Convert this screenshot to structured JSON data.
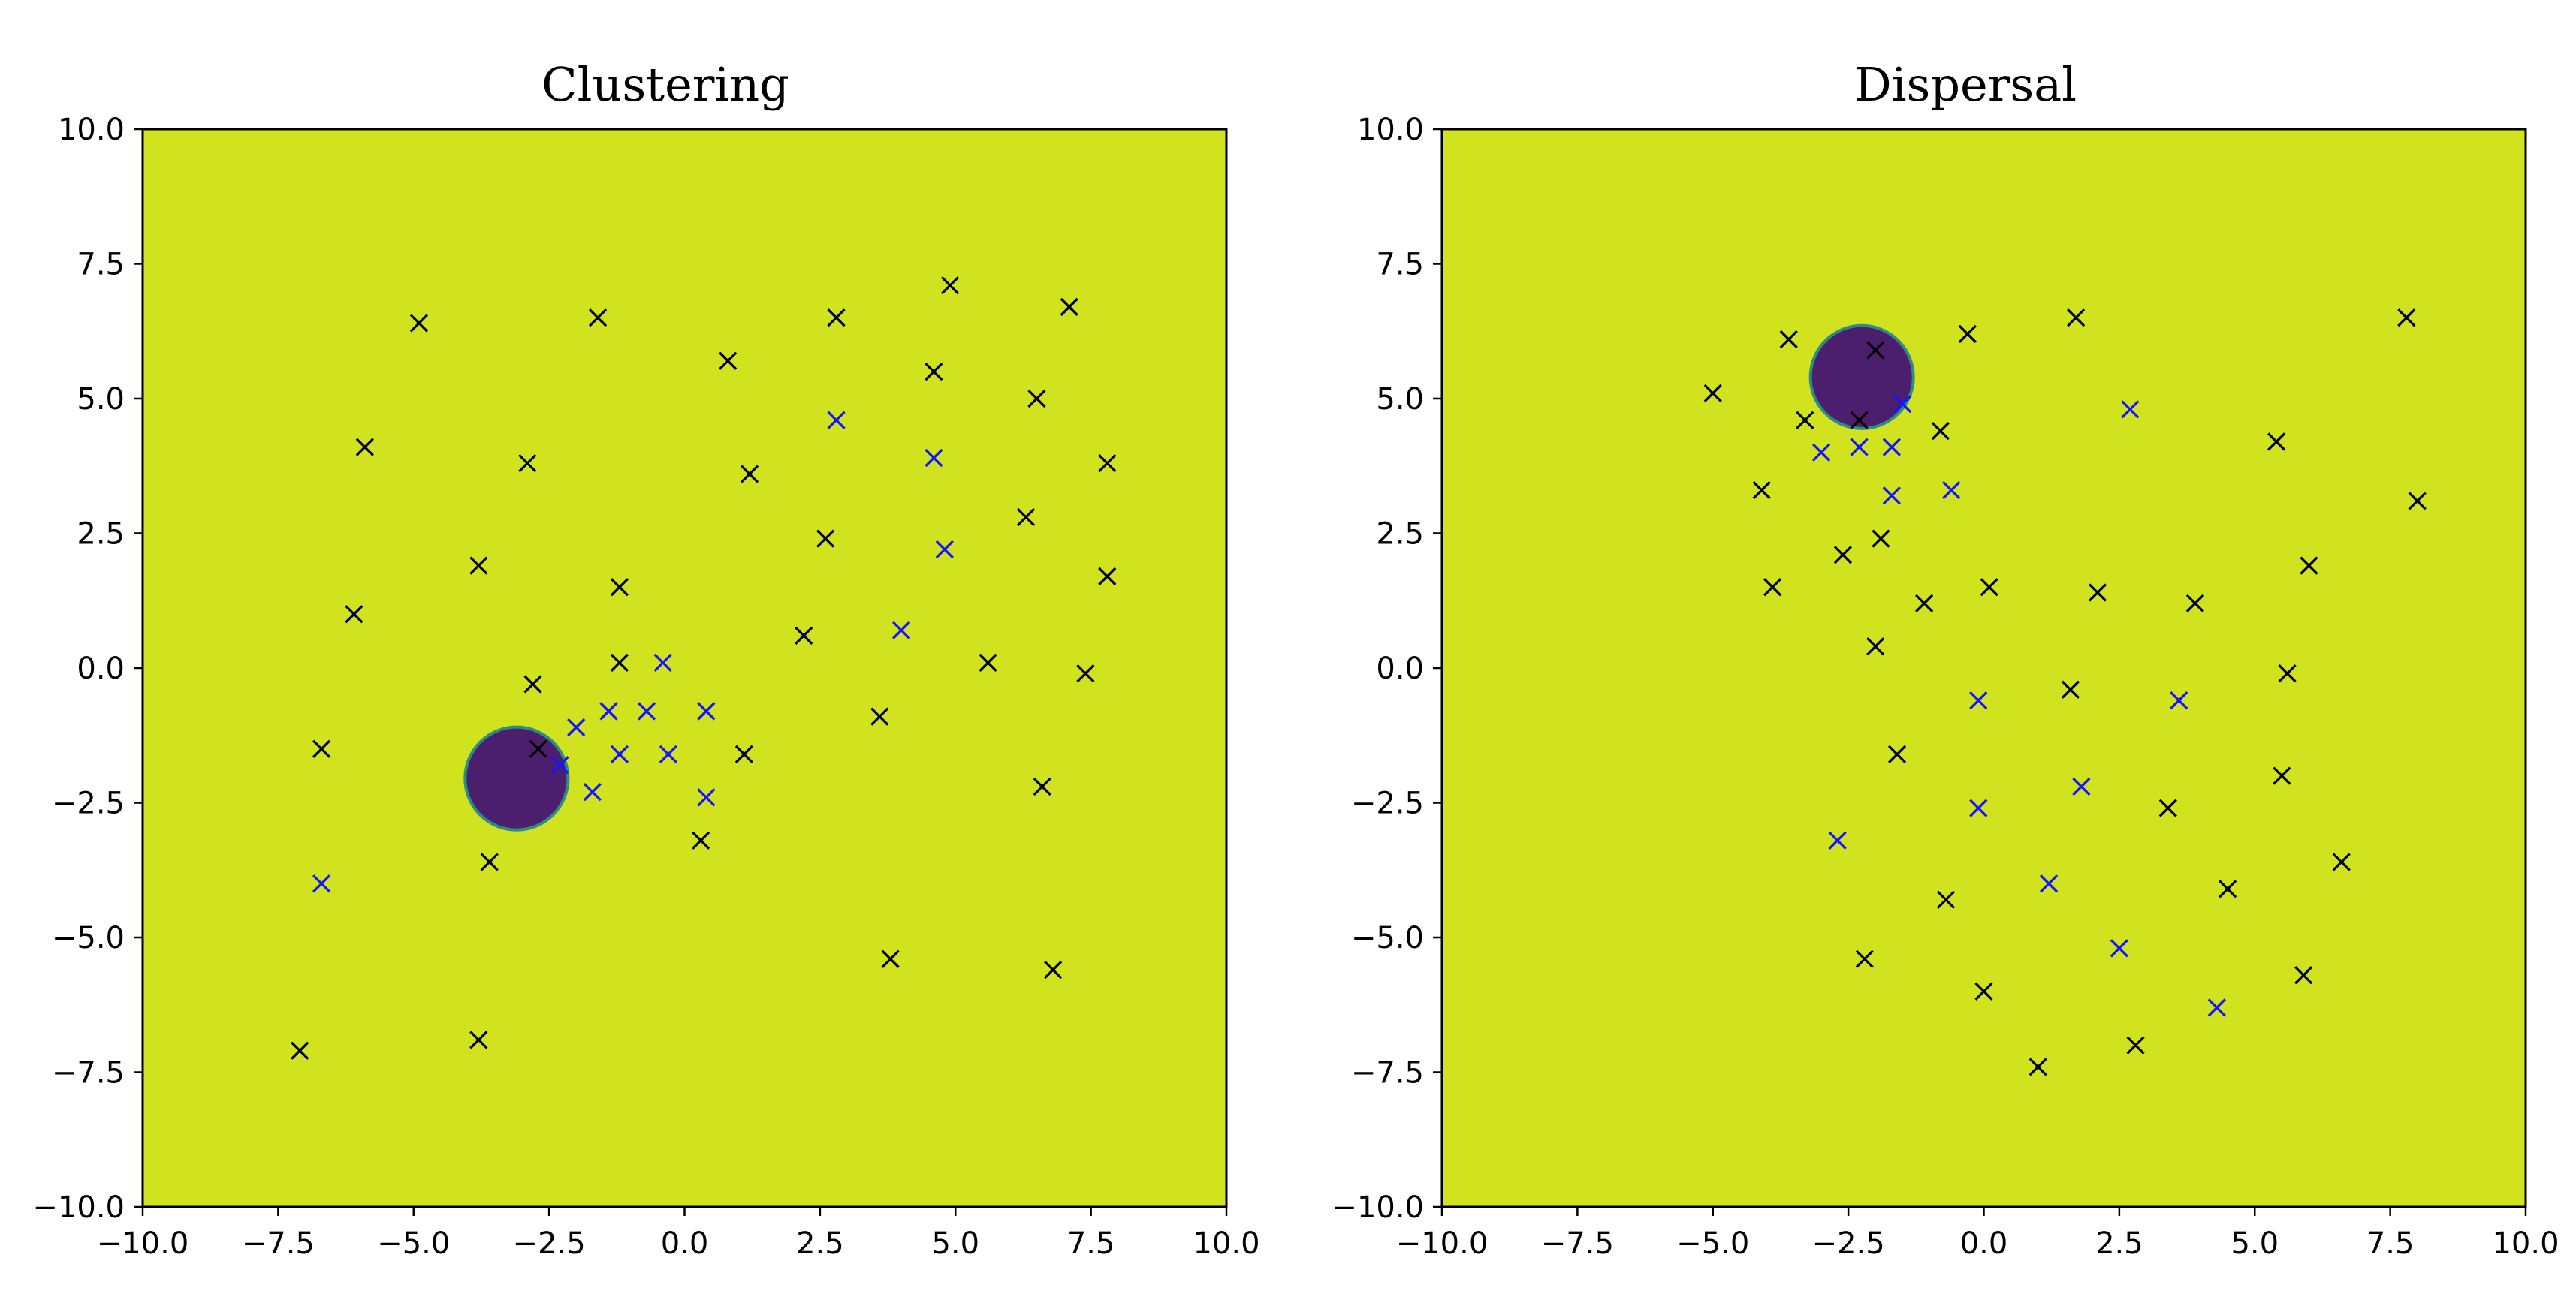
{
  "chart_data": [
    {
      "type": "scatter",
      "title": "Clustering",
      "xlabel": "",
      "ylabel": "",
      "xlim": [
        -10,
        10
      ],
      "ylim": [
        -10,
        10
      ],
      "xticks": [
        -10,
        -7.5,
        -5,
        -2.5,
        0,
        2.5,
        5,
        7.5,
        10
      ],
      "yticks": [
        -10,
        -7.5,
        -5,
        -2.5,
        0,
        2.5,
        5,
        7.5,
        10
      ],
      "tick_labels": [
        "−10.0",
        "−7.5",
        "−5.0",
        "−2.5",
        "0.0",
        "2.5",
        "5.0",
        "7.5",
        "10.0"
      ],
      "grid": false,
      "background_color": "#d1e21e",
      "region": {
        "center": [
          -3.1,
          -2.05
        ],
        "radius": 0.95,
        "fill": "#4b1e6e",
        "edge": "#2e8c86"
      },
      "series": [
        {
          "marker": "x",
          "color": "#000000",
          "points": [
            [
              -4.9,
              6.4
            ],
            [
              -1.6,
              6.5
            ],
            [
              0.8,
              5.7
            ],
            [
              2.8,
              6.5
            ],
            [
              4.9,
              7.1
            ],
            [
              7.1,
              6.7
            ],
            [
              -5.9,
              4.1
            ],
            [
              -2.9,
              3.8
            ],
            [
              1.2,
              3.6
            ],
            [
              4.6,
              5.5
            ],
            [
              6.5,
              5.0
            ],
            [
              7.8,
              3.8
            ],
            [
              -3.8,
              1.9
            ],
            [
              -1.2,
              1.5
            ],
            [
              2.6,
              2.4
            ],
            [
              6.3,
              2.8
            ],
            [
              7.8,
              1.7
            ],
            [
              -6.1,
              1.0
            ],
            [
              2.2,
              0.6
            ],
            [
              -1.2,
              0.1
            ],
            [
              5.6,
              0.1
            ],
            [
              7.4,
              -0.1
            ],
            [
              -2.8,
              -0.3
            ],
            [
              3.6,
              -0.9
            ],
            [
              -6.7,
              -1.5
            ],
            [
              -2.7,
              -1.5
            ],
            [
              1.1,
              -1.6
            ],
            [
              6.6,
              -2.2
            ],
            [
              -3.6,
              -3.6
            ],
            [
              0.3,
              -3.2
            ],
            [
              3.8,
              -5.4
            ],
            [
              6.8,
              -5.6
            ],
            [
              -3.8,
              -6.9
            ],
            [
              -7.1,
              -7.1
            ]
          ]
        },
        {
          "marker": "x",
          "color": "#1414ff",
          "points": [
            [
              2.8,
              4.6
            ],
            [
              4.6,
              3.9
            ],
            [
              4.8,
              2.2
            ],
            [
              4.0,
              0.7
            ],
            [
              -0.4,
              0.1
            ],
            [
              -2.0,
              -1.1
            ],
            [
              -1.4,
              -0.8
            ],
            [
              -0.7,
              -0.8
            ],
            [
              0.4,
              -0.8
            ],
            [
              -1.2,
              -1.6
            ],
            [
              -0.3,
              -1.6
            ],
            [
              -2.3,
              -1.8
            ],
            [
              -1.7,
              -2.3
            ],
            [
              0.4,
              -2.4
            ],
            [
              -6.7,
              -4.0
            ]
          ]
        }
      ]
    },
    {
      "type": "scatter",
      "title": "Dispersal",
      "xlabel": "",
      "ylabel": "",
      "xlim": [
        -10,
        10
      ],
      "ylim": [
        -10,
        10
      ],
      "xticks": [
        -10,
        -7.5,
        -5,
        -2.5,
        0,
        2.5,
        5,
        7.5,
        10
      ],
      "yticks": [
        -10,
        -7.5,
        -5,
        -2.5,
        0,
        2.5,
        5,
        7.5,
        10
      ],
      "tick_labels": [
        "−10.0",
        "−7.5",
        "−5.0",
        "−2.5",
        "0.0",
        "2.5",
        "5.0",
        "7.5",
        "10.0"
      ],
      "grid": false,
      "background_color": "#d1e21e",
      "region": {
        "center": [
          -2.25,
          5.4
        ],
        "radius": 0.95,
        "fill": "#4b1e6e",
        "edge": "#2e8c86"
      },
      "series": [
        {
          "marker": "x",
          "color": "#000000",
          "points": [
            [
              -3.6,
              6.1
            ],
            [
              -2.0,
              5.9
            ],
            [
              -0.3,
              6.2
            ],
            [
              1.7,
              6.5
            ],
            [
              7.8,
              6.5
            ],
            [
              -5.0,
              5.1
            ],
            [
              -3.3,
              4.6
            ],
            [
              -2.3,
              4.6
            ],
            [
              -0.8,
              4.4
            ],
            [
              5.4,
              4.2
            ],
            [
              -4.1,
              3.3
            ],
            [
              8.0,
              3.1
            ],
            [
              -2.6,
              2.1
            ],
            [
              -1.9,
              2.4
            ],
            [
              6.0,
              1.9
            ],
            [
              -3.9,
              1.5
            ],
            [
              0.1,
              1.5
            ],
            [
              2.1,
              1.4
            ],
            [
              -1.1,
              1.2
            ],
            [
              3.9,
              1.2
            ],
            [
              -2.0,
              0.4
            ],
            [
              5.6,
              -0.1
            ],
            [
              1.6,
              -0.4
            ],
            [
              -1.6,
              -1.6
            ],
            [
              5.5,
              -2.0
            ],
            [
              3.4,
              -2.6
            ],
            [
              6.6,
              -3.6
            ],
            [
              4.5,
              -4.1
            ],
            [
              -0.7,
              -4.3
            ],
            [
              -2.2,
              -5.4
            ],
            [
              5.9,
              -5.7
            ],
            [
              0.0,
              -6.0
            ],
            [
              2.8,
              -7.0
            ],
            [
              1.0,
              -7.4
            ]
          ]
        },
        {
          "marker": "x",
          "color": "#1414ff",
          "points": [
            [
              2.7,
              4.8
            ],
            [
              -1.5,
              4.9
            ],
            [
              -3.0,
              4.0
            ],
            [
              -2.3,
              4.1
            ],
            [
              -1.7,
              4.1
            ],
            [
              -1.7,
              3.2
            ],
            [
              -0.6,
              3.3
            ],
            [
              -0.1,
              -0.6
            ],
            [
              3.6,
              -0.6
            ],
            [
              1.8,
              -2.2
            ],
            [
              -0.1,
              -2.6
            ],
            [
              -2.7,
              -3.2
            ],
            [
              1.2,
              -4.0
            ],
            [
              2.5,
              -5.2
            ],
            [
              4.3,
              -6.3
            ]
          ]
        }
      ]
    }
  ]
}
